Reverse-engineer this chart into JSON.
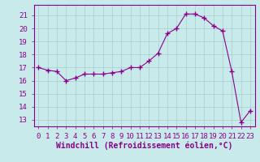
{
  "x": [
    0,
    1,
    2,
    3,
    4,
    5,
    6,
    7,
    8,
    9,
    10,
    11,
    12,
    13,
    14,
    15,
    16,
    17,
    18,
    19,
    20,
    21,
    22,
    23
  ],
  "y": [
    17.0,
    16.8,
    16.7,
    16.0,
    16.2,
    16.5,
    16.5,
    16.5,
    16.6,
    16.7,
    17.0,
    17.0,
    17.5,
    18.1,
    19.6,
    20.0,
    21.1,
    21.1,
    20.8,
    20.2,
    19.8,
    16.7,
    12.8,
    13.7
  ],
  "xlim": [
    -0.5,
    23.5
  ],
  "ylim": [
    12.5,
    21.8
  ],
  "yticks": [
    13,
    14,
    15,
    16,
    17,
    18,
    19,
    20,
    21
  ],
  "xticks": [
    0,
    1,
    2,
    3,
    4,
    5,
    6,
    7,
    8,
    9,
    10,
    11,
    12,
    13,
    14,
    15,
    16,
    17,
    18,
    19,
    20,
    21,
    22,
    23
  ],
  "xlabel": "Windchill (Refroidissement éolien,°C)",
  "line_color": "#8B008B",
  "marker": "+",
  "marker_size": 4,
  "bg_color": "#c8eaea",
  "grid_color": "#a8cece",
  "axis_color": "#8B008B",
  "font_color": "#8B008B",
  "tick_fontsize": 6.5,
  "xlabel_fontsize": 7
}
